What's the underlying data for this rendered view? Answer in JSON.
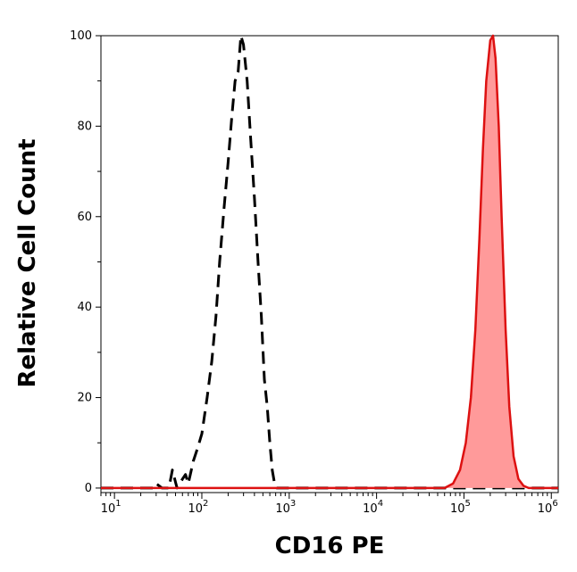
{
  "chart_data": {
    "type": "area",
    "title": "",
    "xlabel": "CD16 PE",
    "ylabel": "Relative Cell Count",
    "x_scale": "log",
    "xlim": [
      7,
      1200000
    ],
    "ylim": [
      -1,
      100
    ],
    "grid": false,
    "legend": "none",
    "x_ticks": [
      {
        "base": "10",
        "exp": "1",
        "value": 10
      },
      {
        "base": "10",
        "exp": "2",
        "value": 100
      },
      {
        "base": "10",
        "exp": "3",
        "value": 1000
      },
      {
        "base": "10",
        "exp": "4",
        "value": 10000
      },
      {
        "base": "10",
        "exp": "5",
        "value": 100000
      },
      {
        "base": "10",
        "exp": "6",
        "value": 1000000
      }
    ],
    "y_ticks": [
      "0",
      "20",
      "40",
      "60",
      "80",
      "100"
    ],
    "series": [
      {
        "style": "dashed",
        "color": "#000000",
        "filled": false,
        "x": [
          7,
          20,
          28,
          30,
          35,
          42,
          46,
          52,
          60,
          65,
          70,
          80,
          90,
          100,
          115,
          130,
          145,
          160,
          180,
          200,
          220,
          240,
          260,
          280,
          300,
          330,
          360,
          400,
          440,
          480,
          520,
          560,
          600,
          640,
          680,
          720,
          1000,
          1200000
        ],
        "values": [
          0,
          0,
          0,
          1,
          0,
          0,
          4,
          0,
          2,
          3,
          1,
          6,
          9,
          12,
          20,
          28,
          38,
          50,
          62,
          72,
          82,
          90,
          92,
          100,
          98,
          90,
          78,
          64,
          50,
          38,
          24,
          18,
          10,
          4,
          1,
          0,
          0,
          0
        ]
      },
      {
        "style": "solid",
        "color": "#dd1111",
        "fill": "#ff9a9a",
        "filled": true,
        "x": [
          7,
          30000,
          60000,
          75000,
          90000,
          105000,
          120000,
          135000,
          150000,
          165000,
          180000,
          200000,
          215000,
          230000,
          250000,
          270000,
          300000,
          330000,
          370000,
          420000,
          480000,
          550000,
          1200000
        ],
        "values": [
          0,
          0,
          0,
          1,
          4,
          10,
          20,
          35,
          55,
          75,
          90,
          99,
          100,
          95,
          80,
          60,
          35,
          18,
          7,
          2,
          0.5,
          0,
          0
        ]
      }
    ]
  }
}
